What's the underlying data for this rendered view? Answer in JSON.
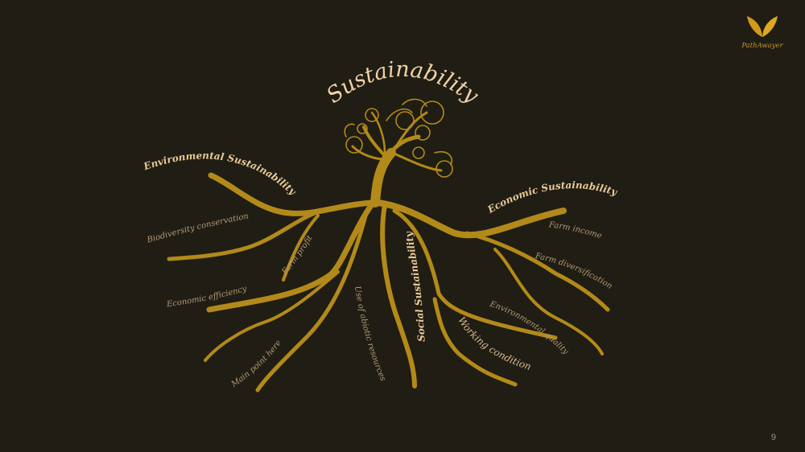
{
  "title": "Sustainability",
  "branches": {
    "environmental": "Environmental Sustainability",
    "economic": "Economic Sustainability",
    "social": "Social Sustainability"
  },
  "roots": {
    "biodiversity": "Biodiversity conservation",
    "farm_profit": "Farm profit",
    "economic_efficiency": "Economic efficiency",
    "use_abiotic": "Use of abiotic resources",
    "main_point": "Main point here",
    "farm_income": "Farm income",
    "farm_diversification": "Farm diversification",
    "environmental_quality": "Environmental quality",
    "working_condition": "Working condition"
  },
  "logo": {
    "name": "PathAwayer",
    "icon": "leaf-icon"
  },
  "page_number": "9",
  "colors": {
    "background": "#201d14",
    "root": "#b38a19",
    "text": "#d8b98a"
  }
}
